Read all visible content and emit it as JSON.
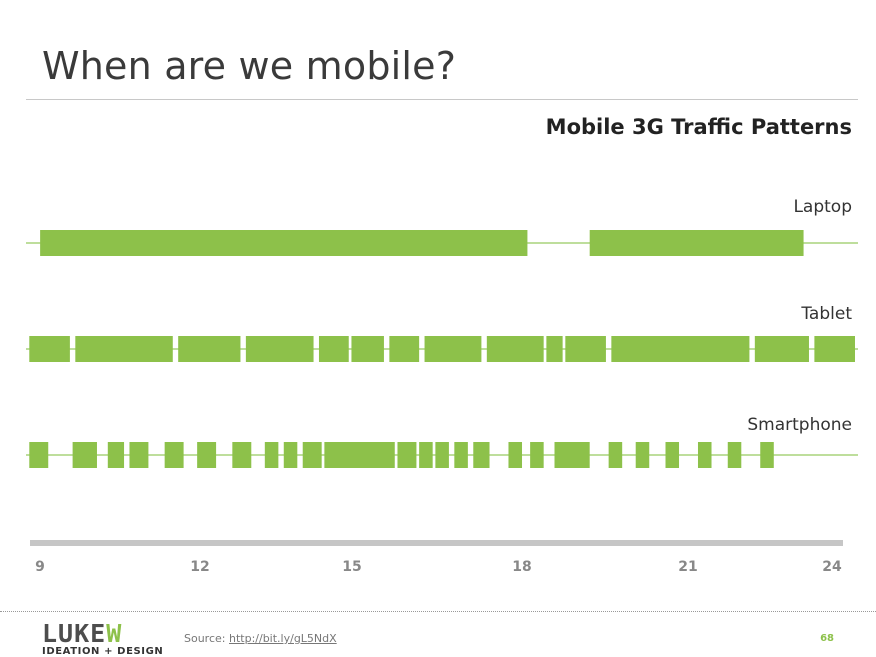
{
  "slide": {
    "title": "When are we mobile?",
    "page_number": "68"
  },
  "footer": {
    "source_label": "Source:",
    "source_link": "http://bit.ly/gL5NdX",
    "logo_main_a": "LUKE",
    "logo_main_b": "W",
    "logo_sub": "IDEATION + DESIGN"
  },
  "colors": {
    "bar": "#8dc14a",
    "axis": "#c6c6c6",
    "baseline": "#a9d47b",
    "text": "#333333",
    "tick_text": "#888888"
  },
  "chart_data": {
    "type": "bar",
    "title": "Mobile 3G  Traffic Patterns",
    "x_axis": {
      "ticks": [
        9,
        12,
        15,
        18,
        21,
        24
      ],
      "range": [
        8.9,
        24.1
      ],
      "label": ""
    },
    "grid": false,
    "series": [
      {
        "name": "Laptop",
        "segments": [
          [
            9.05,
            18.05
          ],
          [
            19.2,
            23.15
          ]
        ]
      },
      {
        "name": "Tablet",
        "segments": [
          [
            8.85,
            9.6
          ],
          [
            9.7,
            11.5
          ],
          [
            11.6,
            12.75
          ],
          [
            12.85,
            14.1
          ],
          [
            14.2,
            14.75
          ],
          [
            14.8,
            15.4
          ],
          [
            15.5,
            16.05
          ],
          [
            16.15,
            17.2
          ],
          [
            17.3,
            18.35
          ],
          [
            18.4,
            18.7
          ],
          [
            18.75,
            19.5
          ],
          [
            19.6,
            22.15
          ],
          [
            22.25,
            23.25
          ],
          [
            23.35,
            24.4
          ]
        ]
      },
      {
        "name": "Smartphone",
        "segments": [
          [
            8.85,
            9.2
          ],
          [
            9.65,
            10.1
          ],
          [
            10.3,
            10.6
          ],
          [
            10.7,
            11.05
          ],
          [
            11.35,
            11.7
          ],
          [
            11.95,
            12.3
          ],
          [
            12.6,
            12.95
          ],
          [
            13.2,
            13.45
          ],
          [
            13.55,
            13.8
          ],
          [
            13.9,
            14.25
          ],
          [
            14.3,
            15.6
          ],
          [
            15.65,
            16.0
          ],
          [
            16.05,
            16.3
          ],
          [
            16.35,
            16.6
          ],
          [
            16.7,
            16.95
          ],
          [
            17.05,
            17.35
          ],
          [
            17.7,
            17.95
          ],
          [
            18.1,
            18.35
          ],
          [
            18.55,
            19.2
          ],
          [
            19.55,
            19.8
          ],
          [
            20.05,
            20.3
          ],
          [
            20.6,
            20.85
          ],
          [
            21.2,
            21.45
          ],
          [
            21.75,
            22.0
          ],
          [
            22.35,
            22.6
          ]
        ]
      }
    ]
  }
}
